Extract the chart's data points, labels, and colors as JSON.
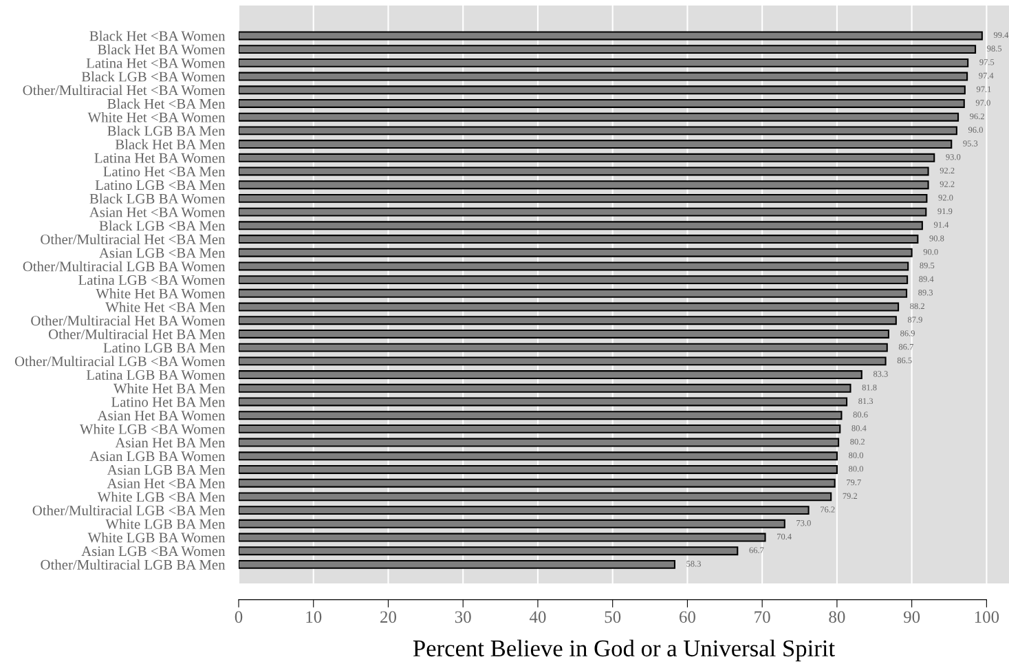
{
  "chart_data": {
    "type": "bar",
    "orientation": "horizontal",
    "xlabel": "Percent Believe in God or a Universal Spirit",
    "categories": [
      "Black Het <BA Women",
      "Black Het BA Women",
      "Latina Het <BA Women",
      "Black LGB <BA Women",
      "Other/Multiracial Het <BA Women",
      "Black Het <BA Men",
      "White Het <BA Women",
      "Black LGB BA Men",
      "Black Het BA Men",
      "Latina Het BA Women",
      "Latino Het <BA Men",
      "Latino LGB <BA Men",
      "Black LGB BA Women",
      "Asian Het <BA Women",
      "Black LGB <BA Men",
      "Other/Multiracial Het <BA Men",
      "Asian LGB <BA Men",
      "Other/Multiracial LGB BA Women",
      "Latina LGB <BA Women",
      "White Het BA Women",
      "White Het <BA Men",
      "Other/Multiracial Het BA Women",
      "Other/Multiracial Het BA Men",
      "Latino LGB BA Men",
      "Other/Multiracial LGB <BA Women",
      "Latina LGB BA Women",
      "White Het BA Men",
      "Latino Het BA Men",
      "Asian Het BA Women",
      "White LGB <BA Women",
      "Asian Het BA Men",
      "Asian LGB BA Women",
      "Asian LGB BA Men",
      "Asian Het <BA Men",
      "White LGB <BA Men",
      "Other/Multiracial LGB <BA Men",
      "White LGB BA Men",
      "White LGB BA Women",
      "Asian LGB <BA Women",
      "Other/Multiracial LGB BA Men"
    ],
    "values": [
      99.4,
      98.5,
      97.5,
      97.4,
      97.1,
      97.0,
      96.2,
      96.0,
      95.3,
      93.0,
      92.2,
      92.2,
      92.0,
      91.9,
      91.4,
      90.8,
      90.0,
      89.5,
      89.4,
      89.3,
      88.2,
      87.9,
      86.9,
      86.7,
      86.5,
      83.3,
      81.8,
      81.3,
      80.6,
      80.4,
      80.2,
      80.0,
      80.0,
      79.7,
      79.2,
      76.2,
      73.0,
      70.4,
      66.7,
      58.3
    ],
    "value_labels": [
      "99.4",
      "98.5",
      "97.5",
      "97.4",
      "97.1",
      "97.0",
      "96.2",
      "96.0",
      "95.3",
      "93.0",
      "92.2",
      "92.2",
      "92.0",
      "91.9",
      "91.4",
      "90.8",
      "90.0",
      "89.5",
      "89.4",
      "89.3",
      "88.2",
      "87.9",
      "86.9",
      "86.7",
      "86.5",
      "83.3",
      "81.8",
      "81.3",
      "80.6",
      "80.4",
      "80.2",
      "80.0",
      "80.0",
      "79.7",
      "79.2",
      "76.2",
      "73.0",
      "70.4",
      "66.7",
      "58.3"
    ],
    "color": "#7f7f7f",
    "xlim": [
      0,
      103
    ],
    "xticks": [
      0,
      10,
      20,
      30,
      40,
      50,
      60,
      70,
      80,
      90,
      100
    ],
    "grid": "x"
  }
}
